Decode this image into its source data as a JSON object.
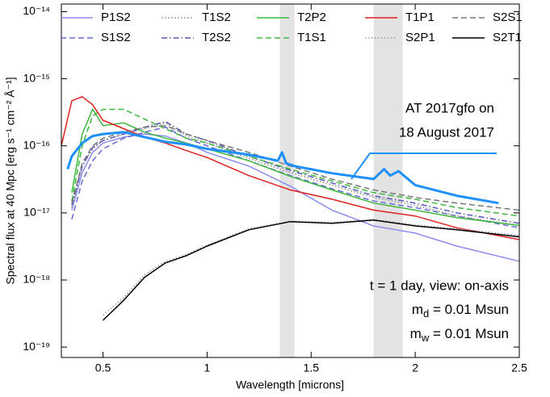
{
  "chart_data": {
    "type": "line",
    "xlabel": "Wavelength [microns]",
    "ylabel": "Spectral flux at 40 Mpc [erg s⁻¹ cm⁻² Å⁻¹]",
    "log_y": true,
    "grid": false,
    "legend": "top",
    "xlim": [
      0.3,
      2.5
    ],
    "ylim": [
      7e-20,
      1.3e-14
    ],
    "xticks": [
      0.5,
      1,
      1.5,
      2,
      2.5
    ],
    "yticks": [
      {
        "value": 1e-19,
        "label": "10⁻¹⁹"
      },
      {
        "value": 1e-18,
        "label": "10⁻¹⁸"
      },
      {
        "value": 1e-17,
        "label": "10⁻¹⁷"
      },
      {
        "value": 1e-16,
        "label": "10⁻¹⁶"
      },
      {
        "value": 1e-15,
        "label": "10⁻¹⁵"
      },
      {
        "value": 1e-14,
        "label": "10⁻¹⁴"
      }
    ],
    "x": [
      0.3,
      0.35,
      0.4,
      0.45,
      0.5,
      0.6,
      0.7,
      0.8,
      0.9,
      1.0,
      1.2,
      1.4,
      1.6,
      1.8,
      2.0,
      2.2,
      2.5
    ],
    "series": [
      {
        "name": "P1S2",
        "color": "#8c8cf0",
        "dash": "solid",
        "values": [
          null,
          1.1e-17,
          4e-17,
          8e-17,
          1.1e-16,
          1.35e-16,
          1.5e-16,
          1.4e-16,
          1.1e-16,
          8e-17,
          5e-17,
          2.5e-17,
          1.1e-17,
          6.4e-18,
          5e-18,
          3.2e-18,
          1.9e-18
        ]
      },
      {
        "name": "S1S2",
        "color": "#6a6ad8",
        "dash": "dashed",
        "values": [
          null,
          8e-18,
          3e-17,
          6e-17,
          9e-17,
          1.3e-16,
          1.6e-16,
          1.9e-16,
          1.3e-16,
          1e-16,
          6e-17,
          3.6e-17,
          2.3e-17,
          1.5e-17,
          1.2e-17,
          9e-18,
          6e-18
        ]
      },
      {
        "name": "T1S2",
        "color": "#888888",
        "dash": "dotted",
        "values": [
          null,
          1.2e-17,
          5e-17,
          9e-17,
          1.2e-16,
          1.5e-16,
          1.8e-16,
          2.2e-16,
          1.4e-16,
          1.1e-16,
          6.5e-17,
          4e-17,
          2.6e-17,
          1.7e-17,
          1.3e-17,
          9e-18,
          6.5e-18
        ]
      },
      {
        "name": "T2S2",
        "color": "#5656b8",
        "dash": "dashdot",
        "values": [
          null,
          1.3e-17,
          5e-17,
          9.5e-17,
          1.2e-16,
          1.5e-16,
          1.9e-16,
          2.3e-16,
          1.5e-16,
          1.2e-16,
          7e-17,
          4.3e-17,
          2.8e-17,
          1.8e-17,
          1.4e-17,
          1e-17,
          7e-18
        ]
      },
      {
        "name": "T2P2",
        "color": "#3cb83c",
        "dash": "solid",
        "values": [
          null,
          2e-17,
          1.5e-16,
          3.5e-16,
          2e-16,
          2.2e-16,
          1.6e-16,
          1.3e-16,
          1.1e-16,
          9e-17,
          6e-17,
          3.5e-17,
          2.2e-17,
          1.4e-17,
          1.1e-17,
          8.5e-18,
          6.5e-18
        ]
      },
      {
        "name": "T1S1",
        "color": "#3cb83c",
        "dash": "dashed",
        "values": [
          null,
          1.5e-17,
          1e-16,
          2.8e-16,
          3.5e-16,
          3.5e-16,
          2.5e-16,
          1.8e-16,
          1.3e-16,
          1.1e-16,
          7e-17,
          4.5e-17,
          3e-17,
          2e-17,
          1.6e-17,
          1.2e-17,
          9e-18
        ]
      },
      {
        "name": "T1P1",
        "color": "#e02020",
        "dash": "solid",
        "values": [
          1e-16,
          4.7e-16,
          5.4e-16,
          4.1e-16,
          2.4e-16,
          1.8e-16,
          1.35e-16,
          1.1e-16,
          8.5e-17,
          6.7e-17,
          3.6e-17,
          2.2e-17,
          1.6e-17,
          1.1e-17,
          9e-18,
          6e-18,
          4e-18
        ]
      },
      {
        "name": "S2P1",
        "color": "#999999",
        "dash": "dotted",
        "values": [
          null,
          null,
          null,
          null,
          3e-19,
          5.5e-19,
          1.2e-18,
          1.9e-18,
          2.4e-18,
          3.3e-18,
          5.8e-18,
          7.6e-18,
          7.2e-18,
          8e-18,
          6.6e-18,
          5.8e-18,
          4.6e-18
        ]
      },
      {
        "name": "S2S1",
        "color": "#777777",
        "dash": "dashed",
        "values": [
          null,
          1.4e-17,
          5.5e-17,
          1e-16,
          1.3e-16,
          1.6e-16,
          1.9e-16,
          2e-16,
          1.5e-16,
          1.2e-16,
          8e-17,
          5e-17,
          3.2e-17,
          2.2e-17,
          1.7e-17,
          1.4e-17,
          1.1e-17
        ]
      },
      {
        "name": "S2T1",
        "color": "#000000",
        "dash": "solid",
        "values": [
          null,
          null,
          null,
          null,
          2.5e-19,
          5e-19,
          1.1e-18,
          1.8e-18,
          2.3e-18,
          3.2e-18,
          5.6e-18,
          7.4e-18,
          7e-18,
          7.8e-18,
          6.4e-18,
          5.6e-18,
          4.4e-18
        ]
      }
    ],
    "observed": {
      "label": [
        "AT 2017gfo on",
        "18 August 2017"
      ],
      "color": "#1e90ff",
      "x": [
        0.33,
        0.35,
        0.4,
        0.45,
        0.5,
        0.6,
        0.7,
        0.8,
        0.9,
        1.0,
        1.2,
        1.34,
        1.36,
        1.38,
        1.42,
        1.6,
        1.8,
        1.85,
        1.88,
        1.92,
        2.0,
        2.2,
        2.4
      ],
      "values": [
        4.5e-17,
        7e-17,
        1.1e-16,
        1.4e-16,
        1.5e-16,
        1.6e-16,
        1.35e-16,
        1.15e-16,
        1.05e-16,
        9e-17,
        7.4e-17,
        6e-17,
        8e-17,
        5.5e-17,
        5e-17,
        3.9e-17,
        3.2e-17,
        4.5e-17,
        3.6e-17,
        4.2e-17,
        2.6e-17,
        1.8e-17,
        1.4e-17
      ]
    },
    "shaded_regions": [
      [
        1.35,
        1.42
      ],
      [
        1.8,
        1.94
      ]
    ],
    "annotations": [
      {
        "text": "t = 1 day, view: on-axis"
      },
      {
        "base": "m",
        "sub": "d",
        "text": " = 0.01 Msun"
      },
      {
        "base": "m",
        "sub": "w",
        "text": " = 0.01 Msun"
      }
    ]
  }
}
